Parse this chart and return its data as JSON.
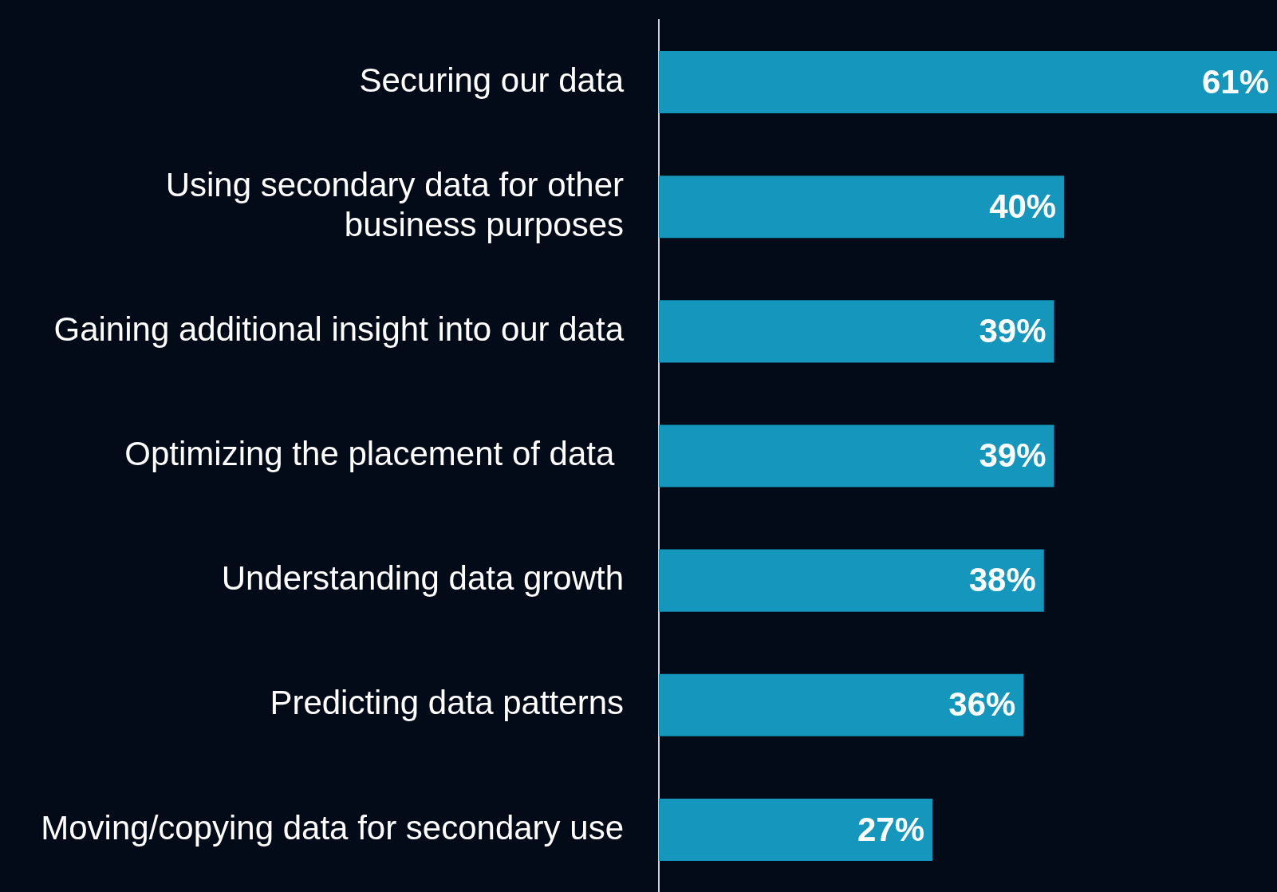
{
  "chart_data": {
    "type": "bar",
    "orientation": "horizontal",
    "categories": [
      "Securing our data",
      "Using secondary data for other business purposes",
      "Gaining additional insight into our data",
      "Optimizing the placement of data ",
      "Understanding data growth",
      "Predicting data patterns",
      "Moving/copying data for secondary use"
    ],
    "values": [
      61,
      40,
      39,
      39,
      38,
      36,
      27
    ],
    "value_labels": [
      "61%",
      "40%",
      "39%",
      "39%",
      "38%",
      "36%",
      "27%"
    ],
    "color": "#1496bd",
    "xlim": [
      0,
      61
    ],
    "tick_labels": "y",
    "legend": false
  }
}
